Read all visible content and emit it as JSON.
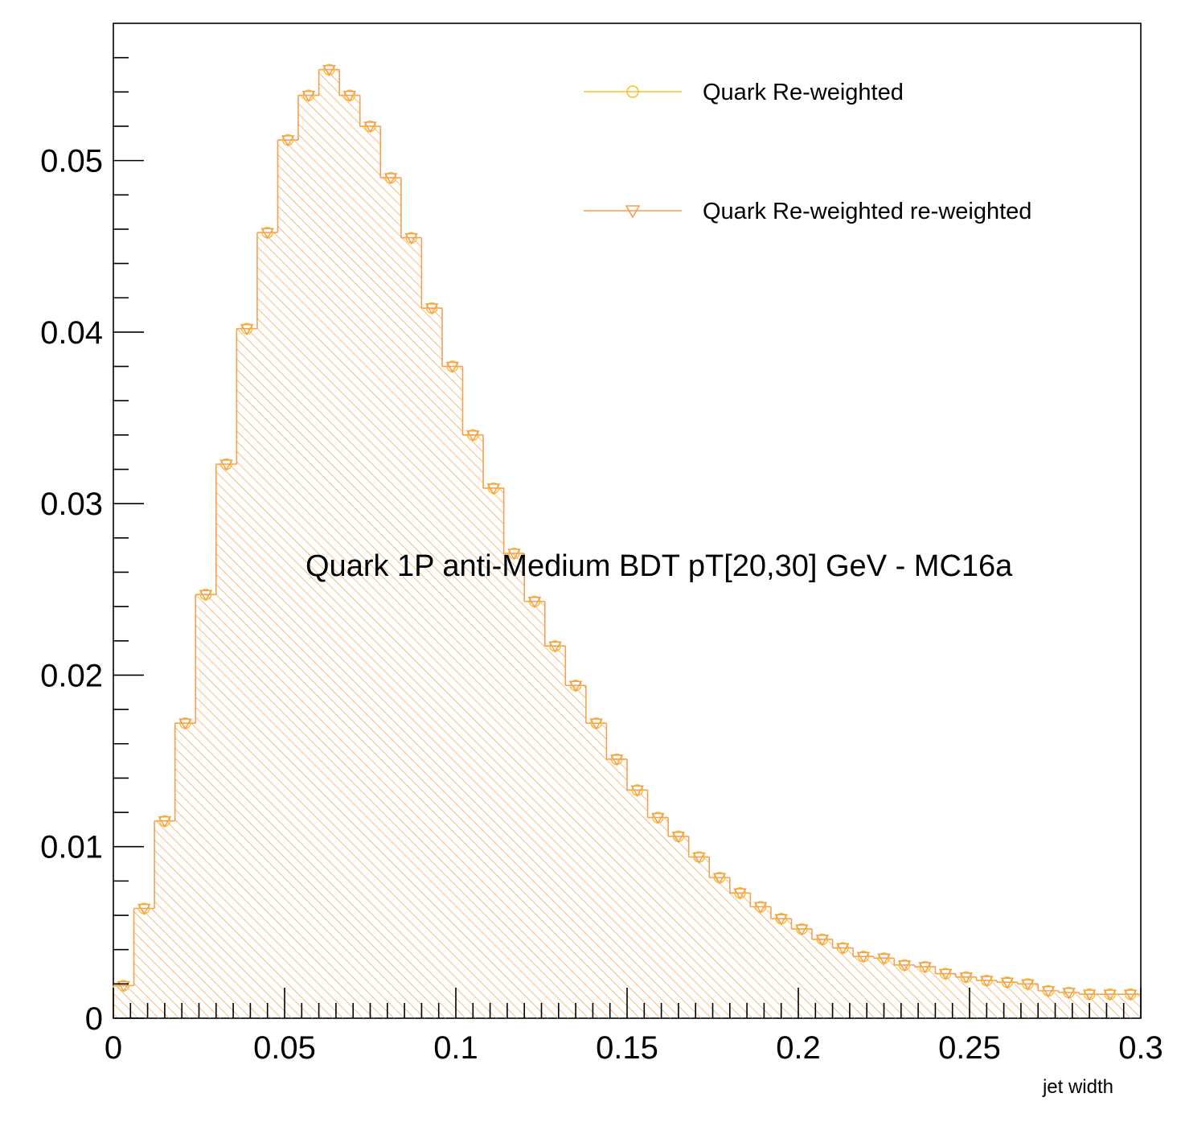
{
  "chart_data": {
    "type": "bar",
    "xlabel": "jet width",
    "ylabel": "",
    "xlim": [
      0,
      0.3
    ],
    "ylim": [
      0,
      0.058
    ],
    "grid": false,
    "x_ticks": [
      "0",
      "0.05",
      "0.1",
      "0.15",
      "0.2",
      "0.25",
      "0.3"
    ],
    "y_ticks": [
      "0",
      "0.01",
      "0.02",
      "0.03",
      "0.04",
      "0.05"
    ],
    "bin_width": 0.006,
    "bin_edges_start": 0,
    "legend_position": "top-right",
    "annotation": "Quark 1P anti-Medium BDT pT[20,30] GeV - MC16a",
    "series": [
      {
        "name": "Quark Re-weighted",
        "color": "#f5c030",
        "marker": "open-circle",
        "values": [
          0.0019,
          0.0064,
          0.0115,
          0.0172,
          0.0247,
          0.0323,
          0.0402,
          0.0458,
          0.0512,
          0.0538,
          0.0553,
          0.0538,
          0.052,
          0.049,
          0.0455,
          0.0414,
          0.038,
          0.034,
          0.0309,
          0.0271,
          0.0243,
          0.0217,
          0.0194,
          0.0172,
          0.0151,
          0.0133,
          0.0117,
          0.0106,
          0.0094,
          0.0082,
          0.0073,
          0.0065,
          0.0058,
          0.0052,
          0.0046,
          0.0041,
          0.0036,
          0.0035,
          0.0031,
          0.003,
          0.0026,
          0.0024,
          0.0022,
          0.0021,
          0.002,
          0.0016,
          0.0015,
          0.0014,
          0.0014,
          0.0014
        ]
      },
      {
        "name": "Quark Re-weighted  re-weighted",
        "color": "#f5a050",
        "marker": "open-triangle-down",
        "values": [
          0.0019,
          0.0064,
          0.0115,
          0.0172,
          0.0247,
          0.0323,
          0.0402,
          0.0458,
          0.0512,
          0.0538,
          0.0553,
          0.0538,
          0.052,
          0.049,
          0.0455,
          0.0414,
          0.038,
          0.034,
          0.0309,
          0.0271,
          0.0243,
          0.0217,
          0.0194,
          0.0172,
          0.0151,
          0.0133,
          0.0117,
          0.0106,
          0.0094,
          0.0082,
          0.0073,
          0.0065,
          0.0058,
          0.0052,
          0.0046,
          0.0041,
          0.0036,
          0.0035,
          0.0031,
          0.003,
          0.0026,
          0.0024,
          0.0022,
          0.0021,
          0.002,
          0.0016,
          0.0015,
          0.0014,
          0.0014,
          0.0014
        ]
      }
    ]
  }
}
